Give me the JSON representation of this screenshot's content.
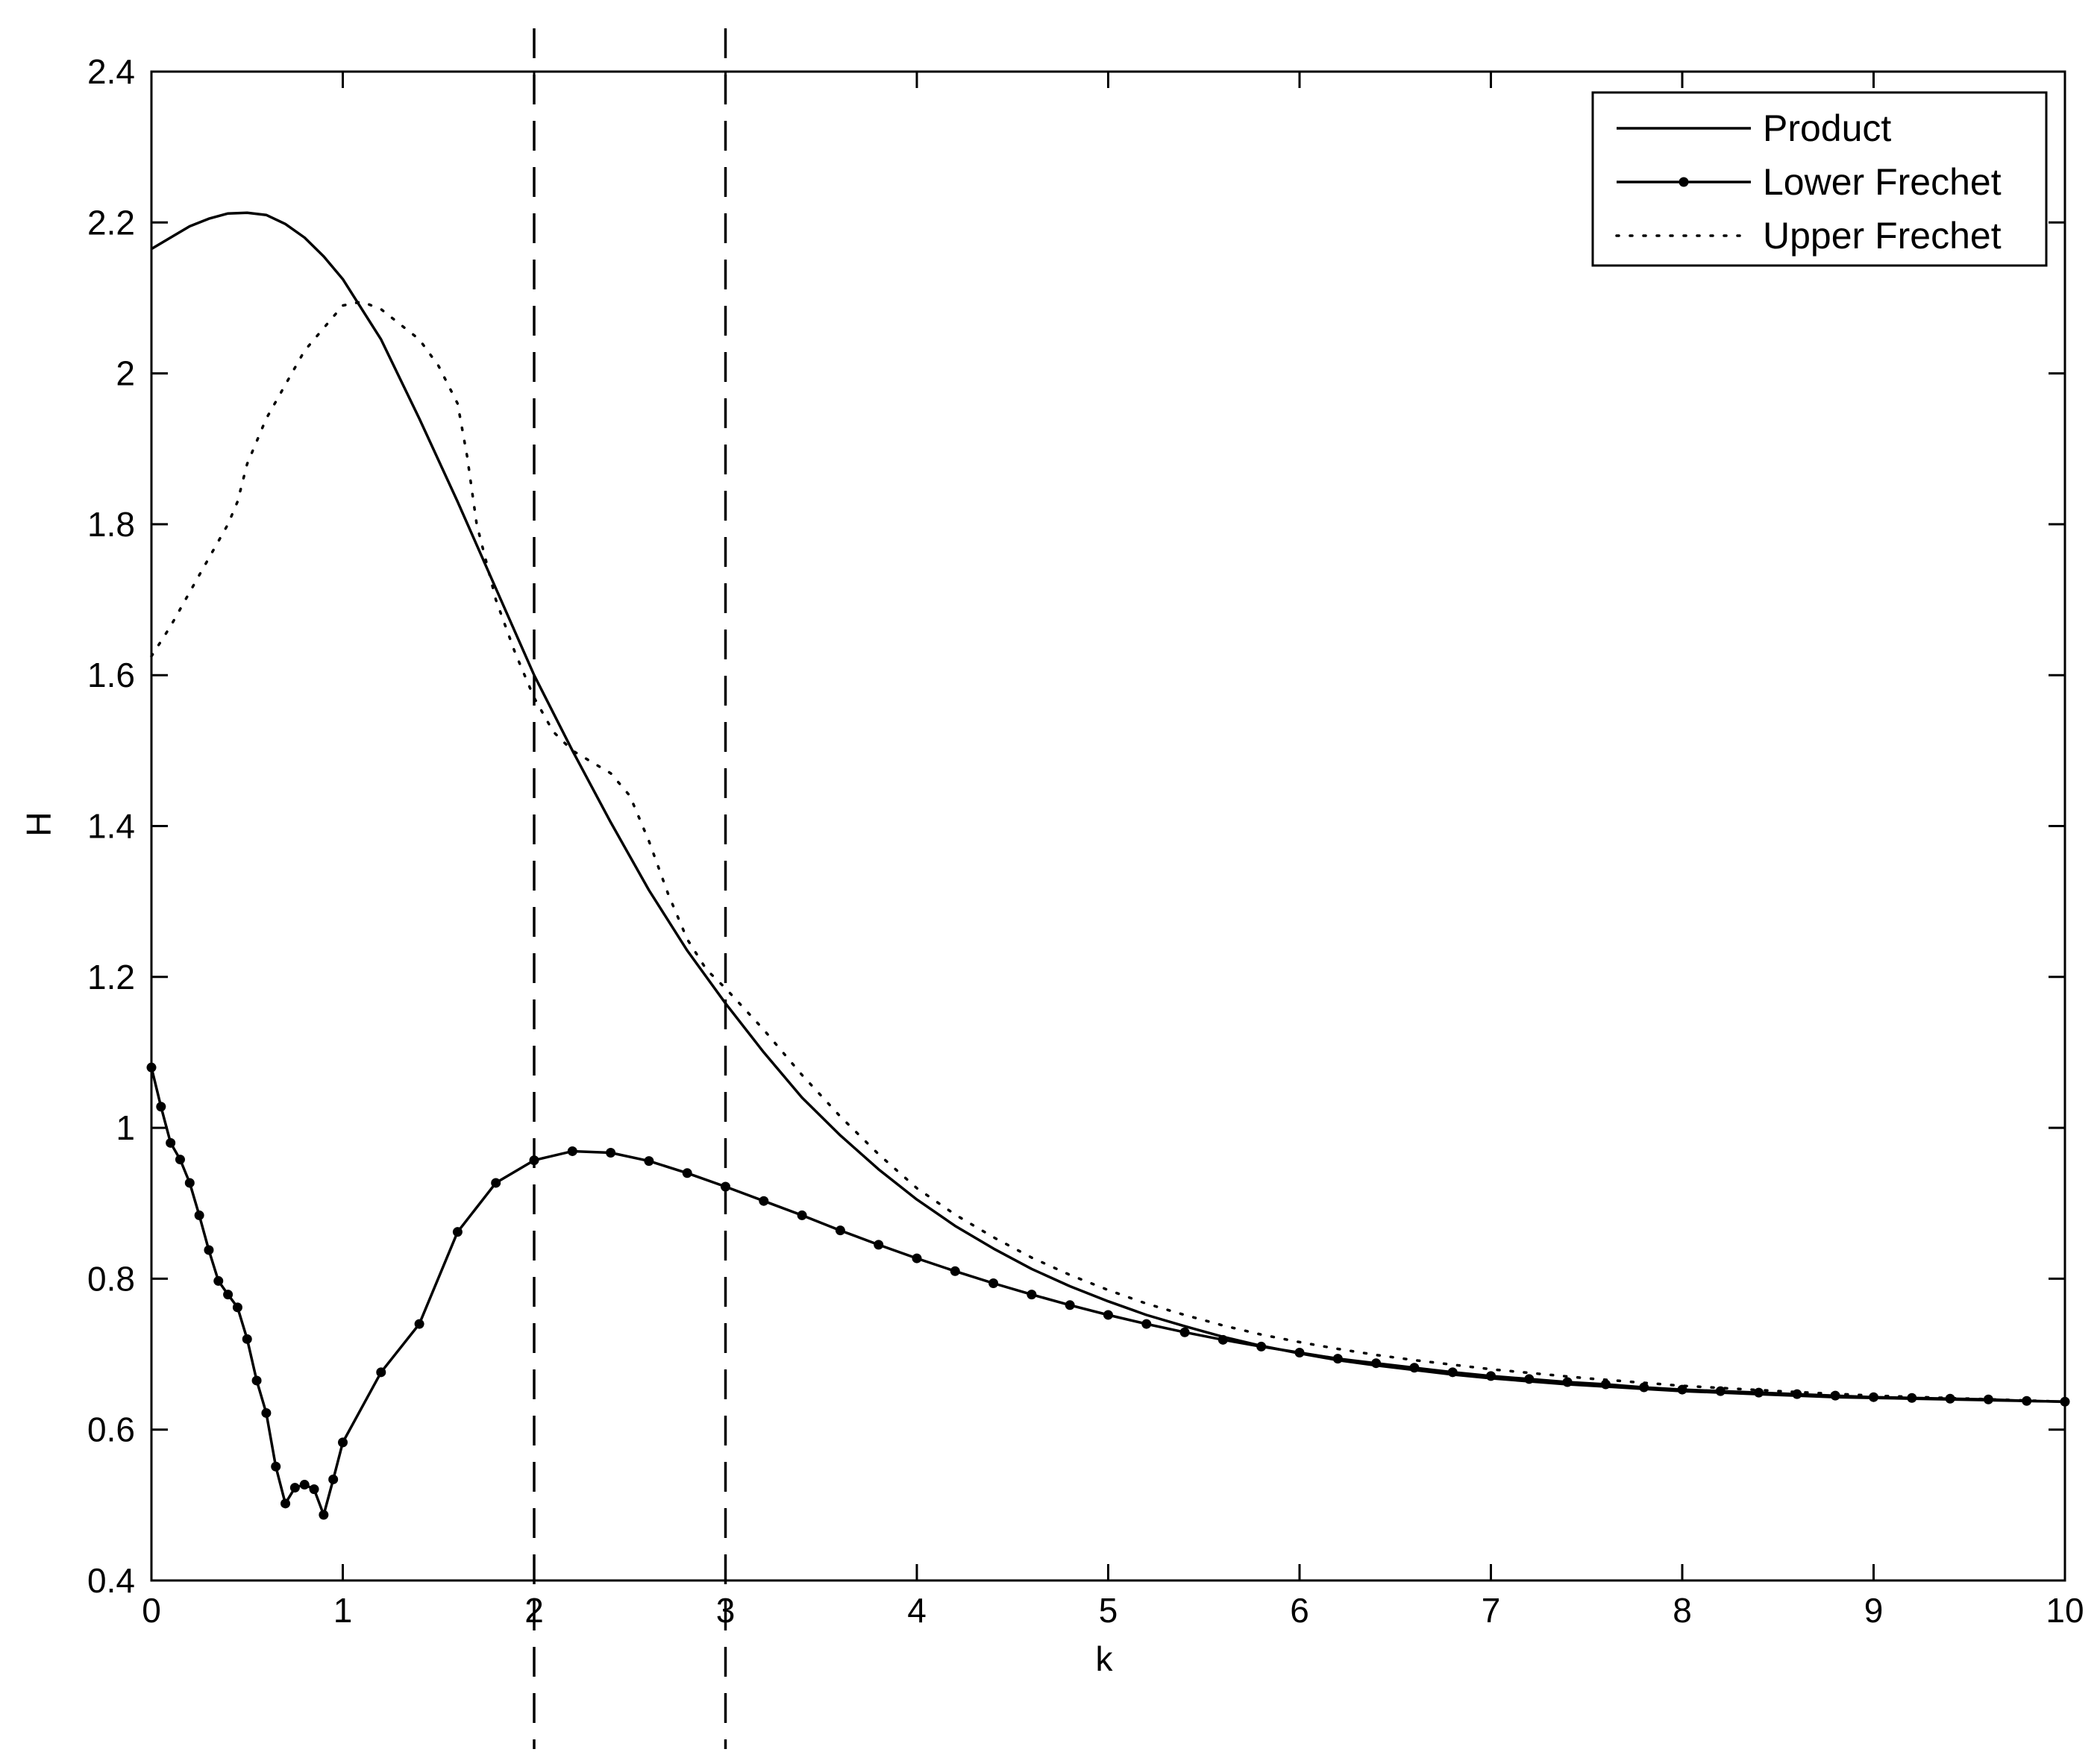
{
  "chart_data": {
    "type": "line",
    "title": "",
    "xlabel": "k",
    "ylabel": "H",
    "xlim": [
      0,
      10
    ],
    "ylim": [
      0.4,
      2.4
    ],
    "xticks": [
      0,
      1,
      2,
      3,
      4,
      5,
      6,
      7,
      8,
      9,
      10
    ],
    "yticks": [
      0.4,
      0.6,
      0.8,
      1.0,
      1.2,
      1.4,
      1.6,
      1.8,
      2.0,
      2.2,
      2.4
    ],
    "xtick_labels": [
      "0",
      "1",
      "2",
      "3",
      "4",
      "5",
      "6",
      "7",
      "8",
      "9",
      "10"
    ],
    "ytick_labels": [
      "0.4",
      "0.6",
      "0.8",
      "1",
      "1.2",
      "1.4",
      "1.6",
      "1.8",
      "2",
      "2.2",
      "2.4"
    ],
    "grid": false,
    "legend_position": "top-right",
    "vertical_reference_lines": [
      2,
      3
    ],
    "series": [
      {
        "name": "Product",
        "style": "solid",
        "x": [
          0,
          0.1,
          0.2,
          0.3,
          0.4,
          0.5,
          0.6,
          0.7,
          0.8,
          0.9,
          1.0,
          1.2,
          1.4,
          1.6,
          1.8,
          2.0,
          2.2,
          2.4,
          2.6,
          2.8,
          3.0,
          3.2,
          3.4,
          3.6,
          3.8,
          4.0,
          4.2,
          4.4,
          4.6,
          4.8,
          5.0,
          5.2,
          5.4,
          5.6,
          5.8,
          6.0,
          6.2,
          6.4,
          6.6,
          6.8,
          7.0,
          7.2,
          7.4,
          7.6,
          7.8,
          8.0,
          8.2,
          8.4,
          8.6,
          8.8,
          9.0,
          9.2,
          9.4,
          9.6,
          9.8,
          10.0
        ],
        "y": [
          2.165,
          2.18,
          2.195,
          2.205,
          2.212,
          2.213,
          2.21,
          2.198,
          2.18,
          2.155,
          2.125,
          2.045,
          1.94,
          1.83,
          1.715,
          1.6,
          1.5,
          1.405,
          1.315,
          1.235,
          1.165,
          1.1,
          1.04,
          0.99,
          0.945,
          0.905,
          0.87,
          0.84,
          0.813,
          0.79,
          0.77,
          0.752,
          0.737,
          0.723,
          0.711,
          0.701,
          0.692,
          0.685,
          0.679,
          0.673,
          0.668,
          0.664,
          0.66,
          0.657,
          0.654,
          0.651,
          0.649,
          0.647,
          0.645,
          0.643,
          0.642,
          0.641,
          0.64,
          0.639,
          0.638,
          0.637
        ]
      },
      {
        "name": "Lower Frechet",
        "style": "solid-dots",
        "x": [
          0,
          0.05,
          0.1,
          0.15,
          0.2,
          0.25,
          0.3,
          0.35,
          0.4,
          0.45,
          0.5,
          0.55,
          0.6,
          0.65,
          0.7,
          0.75,
          0.8,
          0.85,
          0.9,
          0.95,
          1.0,
          1.2,
          1.4,
          1.6,
          1.8,
          2.0,
          2.2,
          2.4,
          2.6,
          2.8,
          3.0,
          3.2,
          3.4,
          3.6,
          3.8,
          4.0,
          4.2,
          4.4,
          4.6,
          4.8,
          5.0,
          5.2,
          5.4,
          5.6,
          5.8,
          6.0,
          6.2,
          6.4,
          6.6,
          6.8,
          7.0,
          7.2,
          7.4,
          7.6,
          7.8,
          8.0,
          8.2,
          8.4,
          8.6,
          8.8,
          9.0,
          9.2,
          9.4,
          9.6,
          9.8,
          10.0
        ],
        "y": [
          1.08,
          1.028,
          0.98,
          0.958,
          0.927,
          0.884,
          0.838,
          0.797,
          0.779,
          0.762,
          0.72,
          0.665,
          0.622,
          0.551,
          0.502,
          0.523,
          0.527,
          0.521,
          0.487,
          0.534,
          0.583,
          0.676,
          0.74,
          0.862,
          0.927,
          0.957,
          0.969,
          0.967,
          0.956,
          0.94,
          0.922,
          0.903,
          0.884,
          0.864,
          0.845,
          0.827,
          0.81,
          0.794,
          0.779,
          0.765,
          0.752,
          0.74,
          0.729,
          0.719,
          0.71,
          0.702,
          0.694,
          0.688,
          0.682,
          0.676,
          0.671,
          0.667,
          0.663,
          0.66,
          0.656,
          0.653,
          0.651,
          0.649,
          0.647,
          0.645,
          0.643,
          0.642,
          0.641,
          0.64,
          0.638,
          0.637
        ]
      },
      {
        "name": "Upper Frechet",
        "style": "dotted",
        "x": [
          0,
          0.1,
          0.2,
          0.3,
          0.4,
          0.45,
          0.5,
          0.6,
          0.7,
          0.8,
          0.9,
          1.0,
          1.1,
          1.2,
          1.3,
          1.4,
          1.5,
          1.6,
          1.65,
          1.7,
          1.75,
          1.8,
          1.9,
          2.0,
          2.1,
          2.2,
          2.3,
          2.4,
          2.5,
          2.6,
          2.7,
          2.8,
          2.9,
          3.0,
          3.2,
          3.4,
          3.6,
          3.8,
          4.0,
          4.2,
          4.4,
          4.6,
          4.8,
          5.0,
          5.2,
          5.4,
          5.6,
          5.8,
          6.0,
          6.2,
          6.4,
          6.6,
          6.8,
          7.0,
          7.5,
          8.0,
          8.5,
          9.0,
          9.5,
          10.0
        ],
        "y": [
          1.625,
          1.665,
          1.71,
          1.755,
          1.8,
          1.83,
          1.88,
          1.94,
          1.985,
          2.03,
          2.06,
          2.09,
          2.095,
          2.085,
          2.065,
          2.045,
          2.01,
          1.96,
          1.89,
          1.8,
          1.75,
          1.7,
          1.63,
          1.57,
          1.525,
          1.5,
          1.485,
          1.47,
          1.44,
          1.38,
          1.31,
          1.25,
          1.21,
          1.185,
          1.13,
          1.07,
          1.015,
          0.965,
          0.92,
          0.885,
          0.855,
          0.828,
          0.805,
          0.785,
          0.767,
          0.752,
          0.738,
          0.726,
          0.716,
          0.707,
          0.699,
          0.692,
          0.686,
          0.68,
          0.668,
          0.658,
          0.651,
          0.645,
          0.641,
          0.637
        ]
      }
    ]
  }
}
